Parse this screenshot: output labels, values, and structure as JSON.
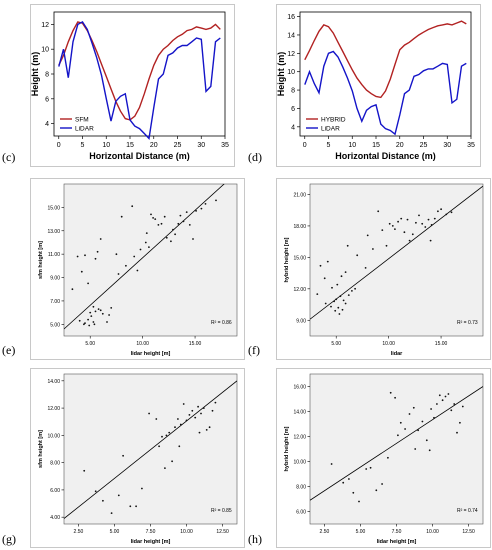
{
  "panels": {
    "c": {
      "label": "(c)"
    },
    "d": {
      "label": "(d)"
    },
    "e": {
      "label": "(e)"
    },
    "f": {
      "label": "(f)"
    },
    "g": {
      "label": "(g)"
    },
    "h": {
      "label": "(h)"
    }
  },
  "chart_data": [
    {
      "id": "c",
      "type": "line",
      "xlabel": "Horizontal Distance (m)",
      "ylabel": "Height (m)",
      "xlim": [
        -1,
        35
      ],
      "ylim": [
        3,
        13
      ],
      "xticks": [
        0,
        5,
        10,
        15,
        20,
        25,
        30,
        35
      ],
      "yticks": [
        4,
        6,
        8,
        10,
        12
      ],
      "legend_position": "bottom-left",
      "series": [
        {
          "name": "SFM",
          "color": "#b22222",
          "x": [
            0,
            1,
            2,
            3,
            4,
            5,
            6,
            7,
            8,
            9,
            10,
            11,
            12,
            13,
            14,
            15,
            16,
            17,
            18,
            19,
            20,
            21,
            22,
            23,
            24,
            25,
            26,
            27,
            28,
            29,
            30,
            31,
            32,
            33,
            34
          ],
          "y": [
            8.7,
            9.5,
            10.6,
            11.5,
            12.2,
            12.1,
            11.5,
            10.7,
            9.8,
            8.8,
            7.8,
            6.8,
            5.8,
            5.0,
            4.4,
            4.3,
            4.6,
            5.3,
            6.4,
            7.6,
            8.7,
            9.5,
            10.0,
            10.3,
            10.7,
            11.0,
            11.2,
            11.5,
            11.6,
            11.8,
            11.7,
            11.6,
            11.7,
            12.0,
            11.6
          ]
        },
        {
          "name": "LiDAR",
          "color": "#1414c8",
          "x": [
            0,
            1,
            2,
            3,
            4,
            5,
            6,
            7,
            8,
            9,
            10,
            11,
            12,
            13,
            14,
            15,
            16,
            17,
            18,
            19,
            20,
            21,
            22,
            23,
            24,
            25,
            26,
            27,
            28,
            29,
            30,
            31,
            32,
            33,
            34
          ],
          "y": [
            8.6,
            10.0,
            7.7,
            10.6,
            12.0,
            12.2,
            11.6,
            10.5,
            9.3,
            7.9,
            6.0,
            4.2,
            5.8,
            6.2,
            6.4,
            4.3,
            3.8,
            3.6,
            3.2,
            2.8,
            5.3,
            7.6,
            8.0,
            9.5,
            9.7,
            10.1,
            10.3,
            10.3,
            10.6,
            10.9,
            10.8,
            6.6,
            7.0,
            10.6,
            10.9
          ]
        }
      ]
    },
    {
      "id": "d",
      "type": "line",
      "xlabel": "Horizontal Distance (m)",
      "ylabel": "Height (m)",
      "xlim": [
        -1,
        35
      ],
      "ylim": [
        3,
        16.5
      ],
      "xticks": [
        0,
        5,
        10,
        15,
        20,
        25,
        30,
        35
      ],
      "yticks": [
        4,
        6,
        8,
        10,
        12,
        14,
        16
      ],
      "legend_position": "bottom-left",
      "series": [
        {
          "name": "HYBRID",
          "color": "#b22222",
          "x": [
            0,
            1,
            2,
            3,
            4,
            5,
            6,
            7,
            8,
            9,
            10,
            11,
            12,
            13,
            14,
            15,
            16,
            17,
            18,
            19,
            20,
            21,
            22,
            23,
            24,
            25,
            26,
            27,
            28,
            29,
            30,
            31,
            32,
            33,
            34
          ],
          "y": [
            11.3,
            12.3,
            13.4,
            14.4,
            15.1,
            14.9,
            14.2,
            13.2,
            12.2,
            11.2,
            10.2,
            9.3,
            8.6,
            8.0,
            7.6,
            7.3,
            7.2,
            7.9,
            9.2,
            10.8,
            12.4,
            12.9,
            13.2,
            13.6,
            14.0,
            14.3,
            14.6,
            14.8,
            15.0,
            15.1,
            15.2,
            15.1,
            15.3,
            15.5,
            15.2
          ]
        },
        {
          "name": "LiDAR",
          "color": "#1414c8",
          "x": [
            0,
            1,
            2,
            3,
            4,
            5,
            6,
            7,
            8,
            9,
            10,
            11,
            12,
            13,
            14,
            15,
            16,
            17,
            18,
            19,
            20,
            21,
            22,
            23,
            24,
            25,
            26,
            27,
            28,
            29,
            30,
            31,
            32,
            33,
            34
          ],
          "y": [
            8.6,
            10.0,
            8.7,
            7.7,
            10.6,
            12.0,
            12.2,
            11.6,
            10.5,
            9.3,
            7.9,
            6.0,
            4.6,
            5.8,
            6.2,
            6.4,
            4.3,
            3.8,
            3.6,
            3.2,
            5.3,
            7.6,
            8.0,
            9.5,
            9.7,
            10.1,
            10.3,
            10.3,
            10.6,
            10.9,
            10.8,
            6.6,
            7.0,
            10.6,
            10.9
          ]
        }
      ]
    },
    {
      "id": "e",
      "type": "scatter",
      "xlabel": "lidar height [m]",
      "ylabel": "sfm height [m]",
      "xlim": [
        2.5,
        19
      ],
      "ylim": [
        4,
        17
      ],
      "xticks": [
        5,
        10,
        15
      ],
      "xtick_labels": [
        "5.00",
        "10.00",
        "15.00"
      ],
      "yticks": [
        5,
        7,
        9,
        11,
        13,
        15
      ],
      "ytick_labels": [
        "5.00",
        "7.00",
        "9.00",
        "11.00",
        "13.00",
        "15.00"
      ],
      "annotation": "R² = 0.86",
      "fit_line": [
        [
          2.5,
          4.6
        ],
        [
          19,
          18.0
        ]
      ],
      "points": [
        [
          3.3,
          8.0
        ],
        [
          3.8,
          10.8
        ],
        [
          4.2,
          9.5
        ],
        [
          4.5,
          10.9
        ],
        [
          4.8,
          8.5
        ],
        [
          5.0,
          6.0
        ],
        [
          5.3,
          6.5
        ],
        [
          5.5,
          10.6
        ],
        [
          5.7,
          11.2
        ],
        [
          4.0,
          5.3
        ],
        [
          4.5,
          5.1
        ],
        [
          4.8,
          5.4
        ],
        [
          5.1,
          5.7
        ],
        [
          5.3,
          5.2
        ],
        [
          5.5,
          6.1
        ],
        [
          5.8,
          6.3
        ],
        [
          6.0,
          6.2
        ],
        [
          6.2,
          5.9
        ],
        [
          6.6,
          5.2
        ],
        [
          4.4,
          5.0
        ],
        [
          4.9,
          4.9
        ],
        [
          5.4,
          5.0
        ],
        [
          6.8,
          5.8
        ],
        [
          7.0,
          6.4
        ],
        [
          7.7,
          9.3
        ],
        [
          8.4,
          10.0
        ],
        [
          9.2,
          10.8
        ],
        [
          9.5,
          9.6
        ],
        [
          9.8,
          11.4
        ],
        [
          10.3,
          12.0
        ],
        [
          10.6,
          11.6
        ],
        [
          10.4,
          12.8
        ],
        [
          10.8,
          14.4
        ],
        [
          11.0,
          14.1
        ],
        [
          11.2,
          14.0
        ],
        [
          11.5,
          13.5
        ],
        [
          11.8,
          13.6
        ],
        [
          12.1,
          14.2
        ],
        [
          12.3,
          12.4
        ],
        [
          12.7,
          12.1
        ],
        [
          12.9,
          13.1
        ],
        [
          13.1,
          12.7
        ],
        [
          13.4,
          13.6
        ],
        [
          13.6,
          14.3
        ],
        [
          13.9,
          13.8
        ],
        [
          14.2,
          14.6
        ],
        [
          14.5,
          13.5
        ],
        [
          14.8,
          12.3
        ],
        [
          15.1,
          14.7
        ],
        [
          15.6,
          14.9
        ],
        [
          16.0,
          15.3
        ],
        [
          17.0,
          15.6
        ],
        [
          9.0,
          15.1
        ],
        [
          8.0,
          14.2
        ],
        [
          6.0,
          12.3
        ],
        [
          7.5,
          11.0
        ]
      ]
    },
    {
      "id": "f",
      "type": "scatter",
      "xlabel": "lidar",
      "ylabel": "hybrid height [m]",
      "xlim": [
        2.5,
        19
      ],
      "ylim": [
        7.5,
        22
      ],
      "xticks": [
        5,
        10,
        15
      ],
      "xtick_labels": [
        "5.00",
        "10.00",
        "15.00"
      ],
      "yticks": [
        9,
        12,
        15,
        18,
        21
      ],
      "ytick_labels": [
        "9.00",
        "12.00",
        "15.00",
        "18.00",
        "21.00"
      ],
      "annotation": "R² = 0.73",
      "fit_line": [
        [
          2.5,
          9.1
        ],
        [
          19,
          21.8
        ]
      ],
      "points": [
        [
          3.2,
          11.5
        ],
        [
          3.5,
          14.2
        ],
        [
          3.9,
          13.0
        ],
        [
          4.2,
          14.6
        ],
        [
          4.6,
          12.1
        ],
        [
          4.8,
          10.8
        ],
        [
          5.0,
          11.0
        ],
        [
          5.2,
          10.2
        ],
        [
          5.4,
          11.3
        ],
        [
          5.7,
          10.9
        ],
        [
          4.5,
          10.3
        ],
        [
          4.9,
          9.9
        ],
        [
          5.3,
          9.6
        ],
        [
          5.6,
          10.0
        ],
        [
          5.9,
          10.6
        ],
        [
          6.2,
          11.4
        ],
        [
          6.5,
          11.8
        ],
        [
          6.8,
          12.0
        ],
        [
          4.0,
          10.6
        ],
        [
          5.1,
          12.4
        ],
        [
          5.5,
          13.2
        ],
        [
          5.9,
          13.6
        ],
        [
          6.1,
          16.1
        ],
        [
          7.0,
          15.2
        ],
        [
          7.8,
          14.0
        ],
        [
          8.0,
          17.1
        ],
        [
          8.5,
          15.8
        ],
        [
          9.0,
          19.4
        ],
        [
          9.4,
          17.6
        ],
        [
          9.8,
          16.1
        ],
        [
          10.1,
          18.2
        ],
        [
          10.4,
          18.0
        ],
        [
          10.6,
          17.7
        ],
        [
          10.9,
          18.4
        ],
        [
          11.2,
          18.7
        ],
        [
          11.5,
          17.4
        ],
        [
          11.8,
          18.6
        ],
        [
          12.0,
          16.6
        ],
        [
          12.3,
          17.2
        ],
        [
          12.6,
          18.3
        ],
        [
          12.9,
          19.0
        ],
        [
          13.2,
          18.2
        ],
        [
          13.5,
          17.9
        ],
        [
          13.8,
          18.6
        ],
        [
          14.1,
          18.1
        ],
        [
          14.4,
          18.7
        ],
        [
          14.7,
          19.4
        ],
        [
          15.0,
          19.6
        ],
        [
          15.5,
          19.1
        ],
        [
          16.0,
          19.3
        ],
        [
          14.0,
          16.6
        ]
      ]
    },
    {
      "id": "g",
      "type": "scatter",
      "xlabel": "lidar height [m]",
      "ylabel": "sfm height [m]",
      "xlim": [
        1.5,
        13.5
      ],
      "ylim": [
        3.5,
        14.5
      ],
      "xticks": [
        2.5,
        5,
        7.5,
        10,
        12.5
      ],
      "xtick_labels": [
        "2.50",
        "5.00",
        "7.50",
        "10.00",
        "12.50"
      ],
      "yticks": [
        4,
        6,
        8,
        10,
        12,
        14
      ],
      "ytick_labels": [
        "4.00",
        "6.00",
        "8.00",
        "10.00",
        "12.00",
        "14.00"
      ],
      "annotation": "R² = 0.85",
      "fit_line": [
        [
          1.5,
          3.9
        ],
        [
          13.5,
          14.0
        ]
      ],
      "points": [
        [
          2.9,
          7.4
        ],
        [
          3.7,
          5.9
        ],
        [
          4.2,
          5.2
        ],
        [
          4.8,
          4.3
        ],
        [
          5.3,
          5.6
        ],
        [
          5.6,
          8.5
        ],
        [
          6.1,
          4.8
        ],
        [
          6.5,
          4.8
        ],
        [
          6.9,
          6.1
        ],
        [
          7.4,
          11.6
        ],
        [
          7.9,
          11.2
        ],
        [
          8.1,
          9.2
        ],
        [
          8.3,
          9.9
        ],
        [
          8.6,
          10.0
        ],
        [
          8.8,
          10.2
        ],
        [
          9.0,
          8.1
        ],
        [
          9.2,
          10.6
        ],
        [
          9.4,
          11.2
        ],
        [
          9.6,
          10.8
        ],
        [
          9.8,
          12.3
        ],
        [
          10.0,
          11.1
        ],
        [
          10.2,
          11.5
        ],
        [
          10.4,
          11.8
        ],
        [
          10.6,
          11.3
        ],
        [
          10.8,
          12.1
        ],
        [
          11.0,
          11.6
        ],
        [
          11.2,
          12.0
        ],
        [
          11.4,
          10.4
        ],
        [
          11.6,
          10.6
        ],
        [
          11.8,
          11.8
        ],
        [
          12.0,
          12.4
        ],
        [
          10.9,
          10.2
        ],
        [
          9.5,
          9.2
        ],
        [
          8.5,
          7.6
        ]
      ]
    },
    {
      "id": "h",
      "type": "scatter",
      "xlabel": "lidar height [m]",
      "ylabel": "hybrid height [m]",
      "xlim": [
        1.5,
        13.5
      ],
      "ylim": [
        5,
        17
      ],
      "xticks": [
        2.5,
        5,
        7.5,
        10,
        12.5
      ],
      "xtick_labels": [
        "2.50",
        "5.00",
        "7.50",
        "10.00",
        "12.50"
      ],
      "yticks": [
        6,
        8,
        10,
        12,
        14,
        16
      ],
      "ytick_labels": [
        "6.00",
        "8.00",
        "10.00",
        "12.00",
        "14.00",
        "16.00"
      ],
      "annotation": "R² = 0.74",
      "fit_line": [
        [
          1.5,
          6.9
        ],
        [
          13.5,
          16.0
        ]
      ],
      "points": [
        [
          3.0,
          9.8
        ],
        [
          3.8,
          8.3
        ],
        [
          4.2,
          8.6
        ],
        [
          4.5,
          7.5
        ],
        [
          4.9,
          6.8
        ],
        [
          5.4,
          9.4
        ],
        [
          5.7,
          9.5
        ],
        [
          6.1,
          7.7
        ],
        [
          6.5,
          8.2
        ],
        [
          6.9,
          10.3
        ],
        [
          7.1,
          15.5
        ],
        [
          7.4,
          15.1
        ],
        [
          7.8,
          13.1
        ],
        [
          8.1,
          12.6
        ],
        [
          8.4,
          13.8
        ],
        [
          8.7,
          14.3
        ],
        [
          9.0,
          12.5
        ],
        [
          9.3,
          13.2
        ],
        [
          9.6,
          11.7
        ],
        [
          9.9,
          14.2
        ],
        [
          10.1,
          13.5
        ],
        [
          10.3,
          14.6
        ],
        [
          10.5,
          15.3
        ],
        [
          10.7,
          14.9
        ],
        [
          10.9,
          15.2
        ],
        [
          11.1,
          15.4
        ],
        [
          11.3,
          14.1
        ],
        [
          11.5,
          14.6
        ],
        [
          11.7,
          12.3
        ],
        [
          11.9,
          13.1
        ],
        [
          12.1,
          14.4
        ],
        [
          9.8,
          10.9
        ],
        [
          8.8,
          11.0
        ],
        [
          7.6,
          12.1
        ]
      ]
    }
  ]
}
